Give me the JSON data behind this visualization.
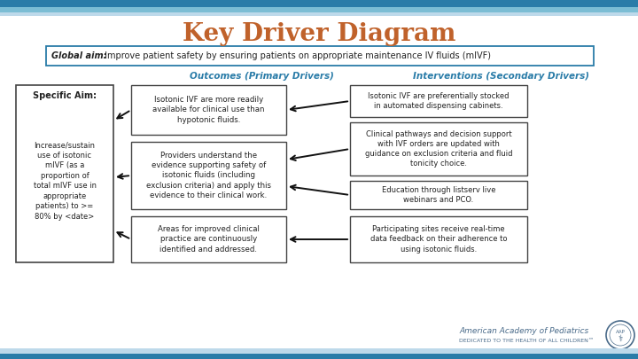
{
  "title": "Key Driver Diagram",
  "title_color": "#C0622B",
  "title_fontsize": 20,
  "bg_color": "#FFFFFF",
  "header_bar_top_color": "#2A7CA8",
  "header_bar_mid_color": "#7BBDD4",
  "header_bar_light_color": "#BDD9EA",
  "global_aim_text_bold": "Global aim:",
  "global_aim_text_rest": " Improve patient safety by ensuring patients on appropriate maintenance IV fluids (mIVF)",
  "global_aim_box_color": "#FFFFFF",
  "global_aim_border_color": "#2A7CA8",
  "col_label_primary": "Outcomes (Primary Drivers)",
  "col_label_secondary": "Interventions (Secondary Drivers)",
  "col_label_color": "#2A7CA8",
  "specific_aim_title": "Specific Aim:",
  "specific_aim_body": "Increase/sustain\nuse of isotonic\nmIVF (as a\nproportion of\ntotal mIVF use in\nappropriate\npatients) to >=\n80% by <date>",
  "specific_aim_box_color": "#FFFFFF",
  "specific_aim_border_color": "#444444",
  "primary_drivers": [
    "Isotonic IVF are more readily\navailable for clinical use than\nhypotonic fluids.",
    "Providers understand the\nevidence supporting safety of\nisotonic fluids (including\nexclusion criteria) and apply this\nevidence to their clinical work.",
    "Areas for improved clinical\npractice are continuously\nidentified and addressed."
  ],
  "secondary_drivers": [
    "Isotonic IVF are preferentially stocked\nin automated dispensing cabinets.",
    "Clinical pathways and decision support\nwith IVF orders are updated with\nguidance on exclusion criteria and fluid\ntonicity choice.",
    "Education through listserv live\nwebinars and PCO.",
    "Participating sites receive real-time\ndata feedback on their adherence to\nusing isotonic fluids."
  ],
  "box_border_color": "#444444",
  "box_fill_color": "#FFFFFF",
  "text_color": "#222222",
  "arrow_color": "#111111",
  "aap_text": "American Academy of Pediatrics",
  "aap_subtext": "DEDICATED TO THE HEALTH OF ALL CHILDREN™",
  "aap_color": "#4A6B8A"
}
